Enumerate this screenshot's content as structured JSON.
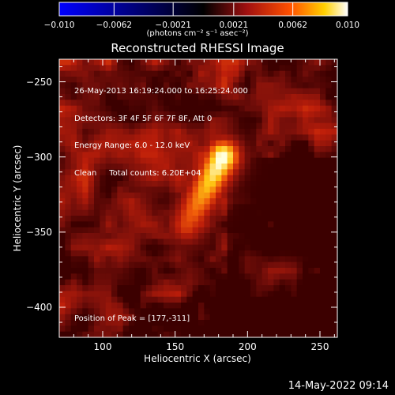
{
  "colorbar": {
    "min": -0.01,
    "max": 0.01,
    "tick_labels": [
      "−0.010",
      "−0.0062",
      "−0.0021",
      "0.0021",
      "0.0062",
      "0.010"
    ],
    "tick_values": [
      -0.01,
      -0.0062,
      -0.0021,
      0.0021,
      0.0062,
      0.01
    ],
    "units": "(photons cm⁻² s⁻¹ asec⁻²)",
    "colors": [
      "#0000ff",
      "#000000",
      "#6a1010",
      "#d02010",
      "#ff8000",
      "#ffe000",
      "#ffffff"
    ]
  },
  "chart_data": {
    "type": "heatmap",
    "title": "Reconstructed RHESSI Image",
    "xlabel": "Heliocentric X (arcsec)",
    "ylabel": "Heliocentric Y (arcsec)",
    "xlim": [
      70,
      262
    ],
    "ylim": [
      -420,
      -235
    ],
    "xticks": [
      100,
      150,
      200,
      250
    ],
    "yticks": [
      -250,
      -300,
      -350,
      -400
    ],
    "annotations": [
      "26-May-2013 16:19:24.000 to 16:25:24.000",
      "Detectors: 3F 4F 5F 6F 7F 8F, Att 0",
      "Energy Range: 6.0 - 12.0 keV",
      "Clean     Total counts: 6.20E+04"
    ],
    "peak_label": "Position of Peak = [177,-311]",
    "peak": [
      177,
      -311
    ],
    "source_axis": {
      "from": [
        158,
        -345
      ],
      "to": [
        183,
        -300
      ]
    }
  },
  "footer": "14-May-2022 09:14"
}
